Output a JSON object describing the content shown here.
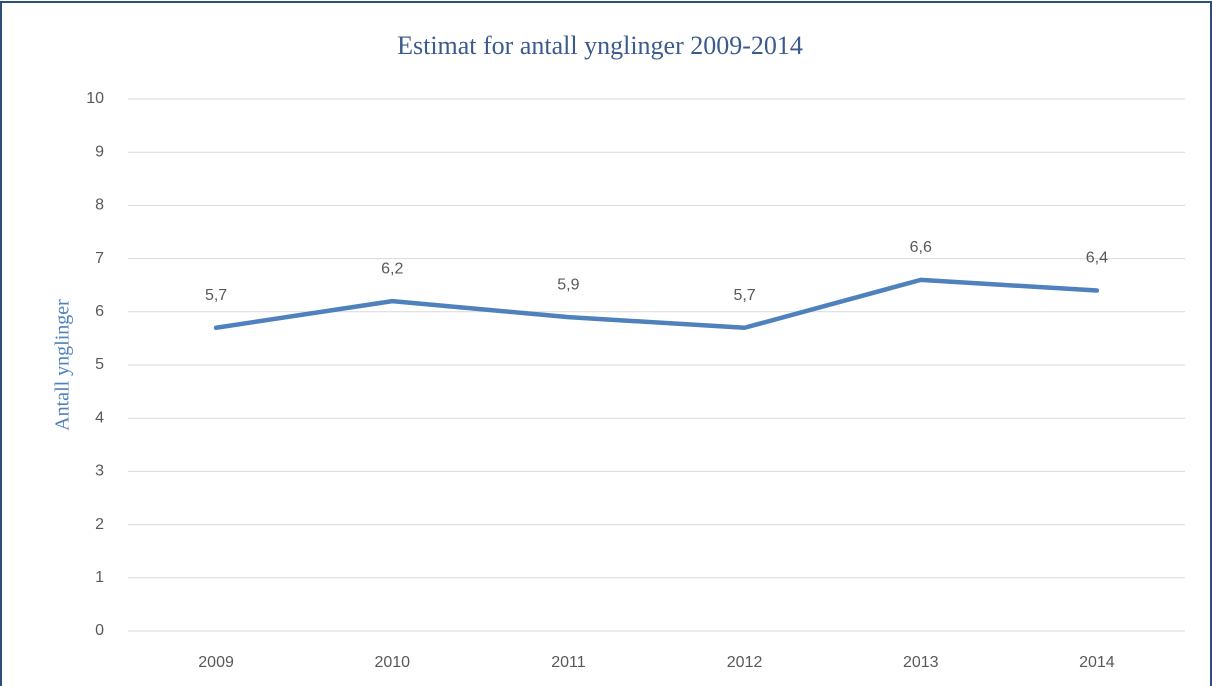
{
  "chart_data": {
    "type": "line",
    "title": "Estimat for antall ynglinger 2009-2014",
    "y_label": "Antall ynglinger",
    "categories": [
      "2009",
      "2010",
      "2011",
      "2012",
      "2013",
      "2014"
    ],
    "series": [
      {
        "name": "Antall ynglinger",
        "color": "#4f81bd",
        "values": [
          5.7,
          6.2,
          5.9,
          5.7,
          6.6,
          6.4
        ],
        "value_labels": [
          "5,7",
          "6,2",
          "5,9",
          "5,7",
          "6,6",
          "6,4"
        ]
      }
    ],
    "ylim": [
      0,
      10
    ],
    "yticks": [
      0,
      1,
      2,
      3,
      4,
      5,
      6,
      7,
      8,
      9,
      10
    ],
    "grid": true
  }
}
